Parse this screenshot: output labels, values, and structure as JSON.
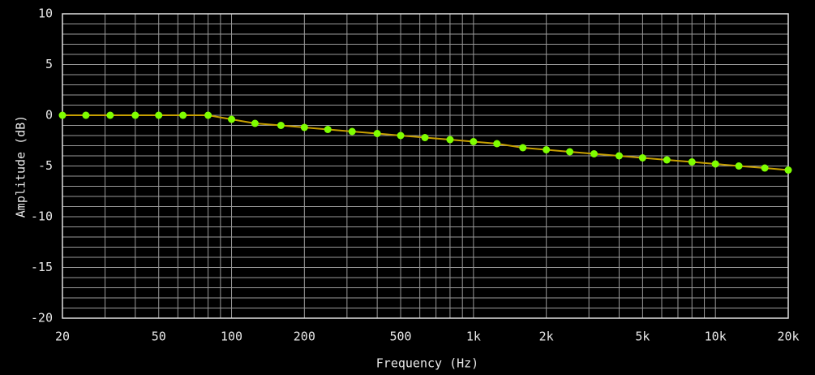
{
  "chart_data": {
    "type": "line",
    "xlabel": "Frequency (Hz)",
    "ylabel": "Amplitude (dB)",
    "xscale": "log",
    "grid": true,
    "x": [
      20,
      25,
      31.5,
      40,
      50,
      63,
      80,
      100,
      125,
      160,
      200,
      250,
      315,
      400,
      500,
      630,
      800,
      1000,
      1250,
      1600,
      2000,
      2500,
      3150,
      4000,
      5000,
      6300,
      8000,
      10000,
      12500,
      16000,
      20000
    ],
    "series": [
      {
        "name": "Amplitude",
        "color": "#c8a000",
        "marker_color": "#7fff00",
        "values": [
          0,
          0,
          0,
          0,
          0,
          0,
          0,
          -0.4,
          -0.8,
          -1.0,
          -1.2,
          -1.4,
          -1.6,
          -1.8,
          -2.0,
          -2.2,
          -2.4,
          -2.6,
          -2.8,
          -3.2,
          -3.4,
          -3.6,
          -3.8,
          -4.0,
          -4.2,
          -4.4,
          -4.6,
          -4.8,
          -5.0,
          -5.2,
          -5.4
        ]
      }
    ],
    "xlim": [
      20,
      20000
    ],
    "xticks": [
      20,
      50,
      100,
      200,
      500,
      {
        "value": 1000,
        "label": "1k"
      },
      {
        "value": 2000,
        "label": "2k"
      },
      {
        "value": 5000,
        "label": "5k"
      },
      {
        "value": 10000,
        "label": "10k"
      },
      {
        "value": 20000,
        "label": "20k"
      }
    ],
    "xminorticks": [
      30,
      40,
      60,
      70,
      80,
      90,
      300,
      400,
      600,
      700,
      800,
      900,
      3000,
      4000,
      6000,
      7000,
      8000,
      9000
    ],
    "ylim": [
      -20,
      10
    ],
    "yticks": [
      -20,
      -15,
      -10,
      -5,
      0,
      5,
      10
    ],
    "yminorticks": [
      -19,
      -18,
      -17,
      -16,
      -14,
      -13,
      -12,
      -11,
      -9,
      -8,
      -7,
      -6,
      -4,
      -3,
      -2,
      -1,
      1,
      2,
      3,
      4,
      6,
      7,
      8,
      9
    ]
  }
}
